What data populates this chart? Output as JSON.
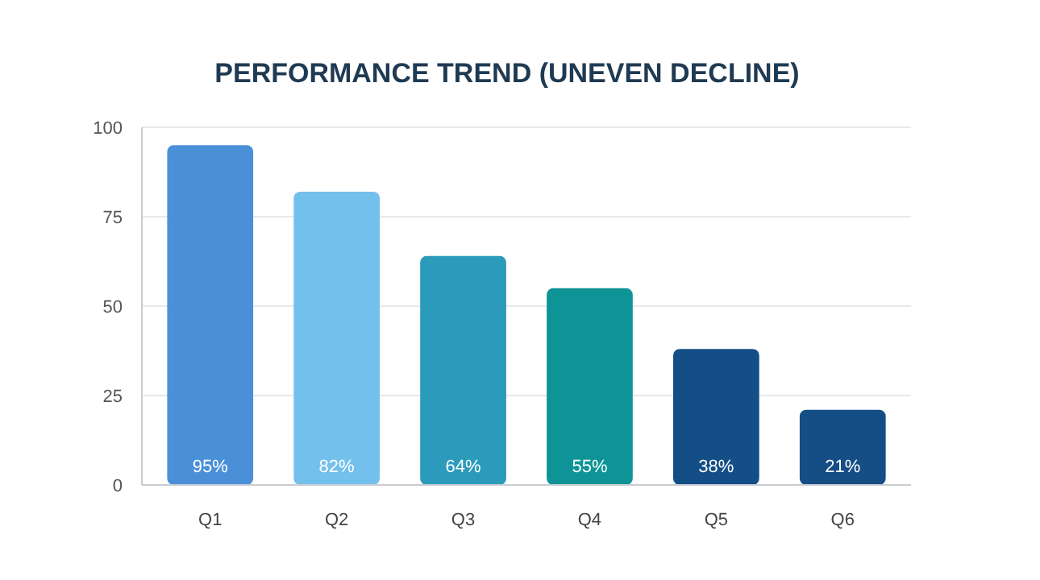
{
  "chart_data": {
    "type": "bar",
    "title": "PERFORMANCE TREND (UNEVEN DECLINE)",
    "categories": [
      "Q1",
      "Q2",
      "Q3",
      "Q4",
      "Q5",
      "Q6"
    ],
    "values": [
      95,
      82,
      64,
      55,
      38,
      21
    ],
    "colors": [
      "#4a90d9",
      "#74c0ec",
      "#2b9abb",
      "#0e9496",
      "#134e86",
      "#154d85"
    ],
    "value_labels": [
      "95%",
      "82%",
      "64%",
      "55%",
      "38%",
      "21%"
    ],
    "ylim": [
      0,
      100
    ],
    "yticks": [
      0,
      25,
      50,
      75,
      100
    ],
    "grid": "y"
  }
}
